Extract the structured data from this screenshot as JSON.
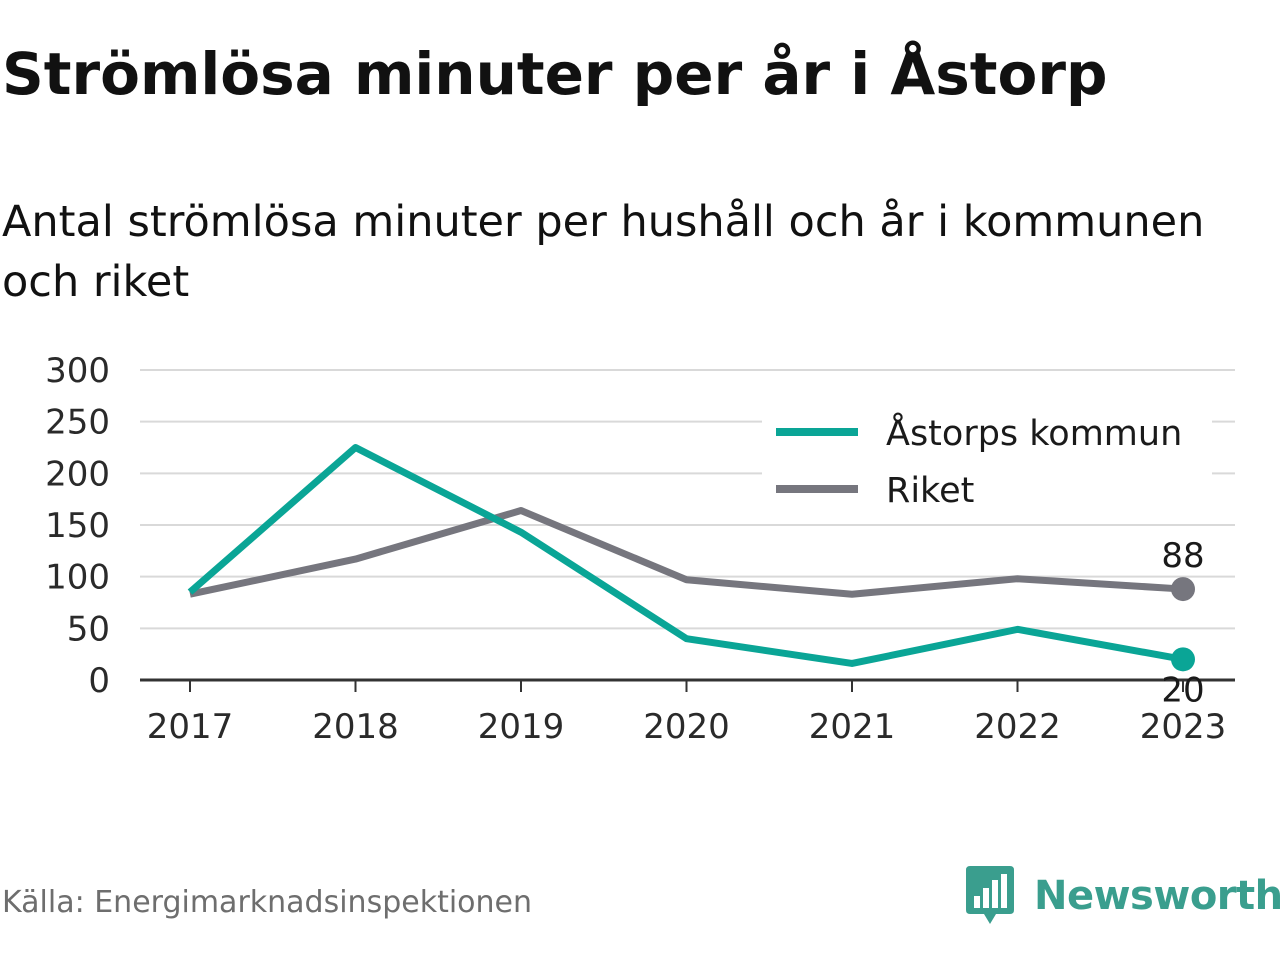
{
  "title": "Strömlösa minuter per år i Åstorp",
  "subtitle": "Antal strömlösa minuter per hushåll och år i kommunen och riket",
  "source": "Källa: Energimarknadsinspektionen",
  "brand": {
    "name": "Newsworthy",
    "icon": "newsworthy-logo-icon",
    "color": "#3a9e8e"
  },
  "colors": {
    "astorp": "#0aa596",
    "riket": "#76767e",
    "grid": "#d9d9d9",
    "axis": "#333333"
  },
  "chart_data": {
    "type": "line",
    "x": [
      "2017",
      "2018",
      "2019",
      "2020",
      "2021",
      "2022",
      "2023"
    ],
    "series": [
      {
        "name": "Åstorps kommun",
        "values": [
          85,
          225,
          143,
          40,
          16,
          49,
          20
        ]
      },
      {
        "name": "Riket",
        "values": [
          83,
          117,
          164,
          97,
          83,
          98,
          88
        ]
      }
    ],
    "y_ticks": [
      "0",
      "50",
      "100",
      "150",
      "200",
      "250",
      "300"
    ],
    "ylim": [
      0,
      300
    ],
    "grid": true,
    "legend": "top-right",
    "end_labels": {
      "astorp": "20",
      "riket": "88"
    }
  }
}
